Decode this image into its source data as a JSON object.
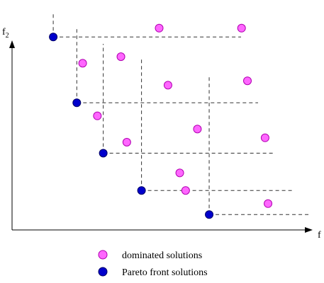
{
  "chart_data": {
    "type": "scatter",
    "xlabel": "f",
    "ylabel_base": "f",
    "ylabel_sub": "2",
    "xlim": [
      0,
      100
    ],
    "ylim": [
      0,
      100
    ],
    "grid": false,
    "legend": "bottom",
    "series": [
      {
        "name": "dominated solutions",
        "color": "#ff66ff",
        "points": [
          {
            "x": 50,
            "y": 92
          },
          {
            "x": 78,
            "y": 92
          },
          {
            "x": 24,
            "y": 76
          },
          {
            "x": 37,
            "y": 79
          },
          {
            "x": 53,
            "y": 66
          },
          {
            "x": 80,
            "y": 68
          },
          {
            "x": 29,
            "y": 52
          },
          {
            "x": 39,
            "y": 40
          },
          {
            "x": 63,
            "y": 46
          },
          {
            "x": 86,
            "y": 42
          },
          {
            "x": 57,
            "y": 26
          },
          {
            "x": 59,
            "y": 18
          },
          {
            "x": 87,
            "y": 12
          }
        ]
      },
      {
        "name": "Pareto front solutions",
        "color": "#0000cc",
        "points": [
          {
            "x": 14,
            "y": 88
          },
          {
            "x": 22,
            "y": 58
          },
          {
            "x": 31,
            "y": 35
          },
          {
            "x": 44,
            "y": 18
          },
          {
            "x": 67,
            "y": 7
          }
        ]
      }
    ]
  }
}
